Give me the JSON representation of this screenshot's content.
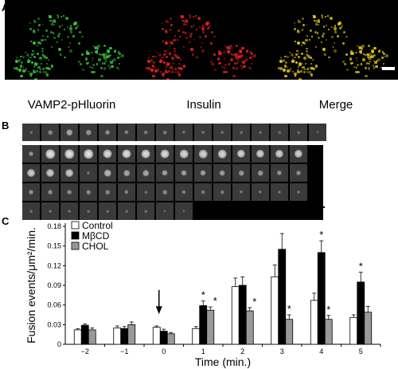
{
  "panel_labels": {
    "a": "A",
    "b": "B",
    "c": "C"
  },
  "panel_a": {
    "captions": [
      "VAMP2-pHluorin",
      "Insulin",
      "Merge"
    ],
    "colors": {
      "vamp": "#3ac13a",
      "insulin": "#e52121",
      "merge": "#d8c21a"
    }
  },
  "panel_b": {
    "rows": [
      [
        0.05,
        0.25,
        0.45,
        0.35,
        0.28,
        0.22,
        0.18,
        0.15,
        0.12,
        0.1,
        0.08,
        0.07,
        0.06,
        0.05,
        0.05,
        0.04
      ],
      [
        0.3,
        0.85,
        0.85,
        0.85,
        0.8,
        0.8,
        0.78,
        0.78,
        0.76,
        0.75,
        0.75,
        0.74,
        0.73,
        0.72,
        0.72,
        0.7,
        0.7,
        0.68
      ],
      [
        0.1,
        0.55,
        0.45,
        0.45,
        0.42,
        0.4,
        0.4,
        0.38,
        0.35,
        0.35,
        0.33,
        0.3,
        0.3,
        0.28,
        0.28,
        0.26,
        0.25,
        0.22
      ],
      [
        0.05,
        0.25,
        0.2,
        0.18,
        0.16,
        0.14,
        0.12,
        0.1,
        0.1,
        0.08,
        0.08,
        0.07,
        0.06,
        0.06,
        0.05,
        0.05,
        0.04,
        0.04
      ]
    ]
  },
  "chart_data": {
    "type": "bar",
    "categories": [
      "−2",
      "−1",
      "0",
      "1",
      "2",
      "3",
      "4",
      "5"
    ],
    "series": [
      {
        "name": "Control",
        "values": [
          0.022,
          0.025,
          0.026,
          0.024,
          0.088,
          0.103,
          0.067,
          0.041
        ],
        "errors": [
          0.002,
          0.003,
          0.002,
          0.003,
          0.013,
          0.018,
          0.011,
          0.004
        ],
        "color": "#ffffff"
      },
      {
        "name": "MβCD",
        "values": [
          0.029,
          0.024,
          0.02,
          0.059,
          0.09,
          0.145,
          0.14,
          0.095
        ],
        "errors": [
          0.002,
          0.003,
          0.003,
          0.007,
          0.013,
          0.024,
          0.018,
          0.015
        ],
        "color": "#000000"
      },
      {
        "name": "CHOL",
        "values": [
          0.022,
          0.03,
          0.016,
          0.052,
          0.051,
          0.038,
          0.038,
          0.049
        ],
        "errors": [
          0.003,
          0.004,
          0.002,
          0.005,
          0.005,
          0.007,
          0.006,
          0.009
        ],
        "color": "#999999"
      }
    ],
    "significance": [
      {
        "category": "1",
        "series": "MβCD",
        "text": "*"
      },
      {
        "category": "1",
        "series": "CHOL",
        "text": "*"
      },
      {
        "category": "2",
        "series": "CHOL",
        "text": "*"
      },
      {
        "category": "3",
        "series": "CHOL",
        "text": "*"
      },
      {
        "category": "4",
        "series": "MβCD",
        "text": "*"
      },
      {
        "category": "4",
        "series": "CHOL",
        "text": "*"
      },
      {
        "category": "5",
        "series": "MβCD",
        "text": "*"
      }
    ],
    "yticks": [
      "0",
      "0.03",
      "0.06",
      "0.09",
      "0.12",
      "0.15",
      "0.18"
    ],
    "ylim": [
      0,
      0.18
    ],
    "xlabel": "Time (min.)",
    "ylabel": "Fusion events/μm²/min.",
    "legend_position": "top-left",
    "arrow_at": "0"
  }
}
